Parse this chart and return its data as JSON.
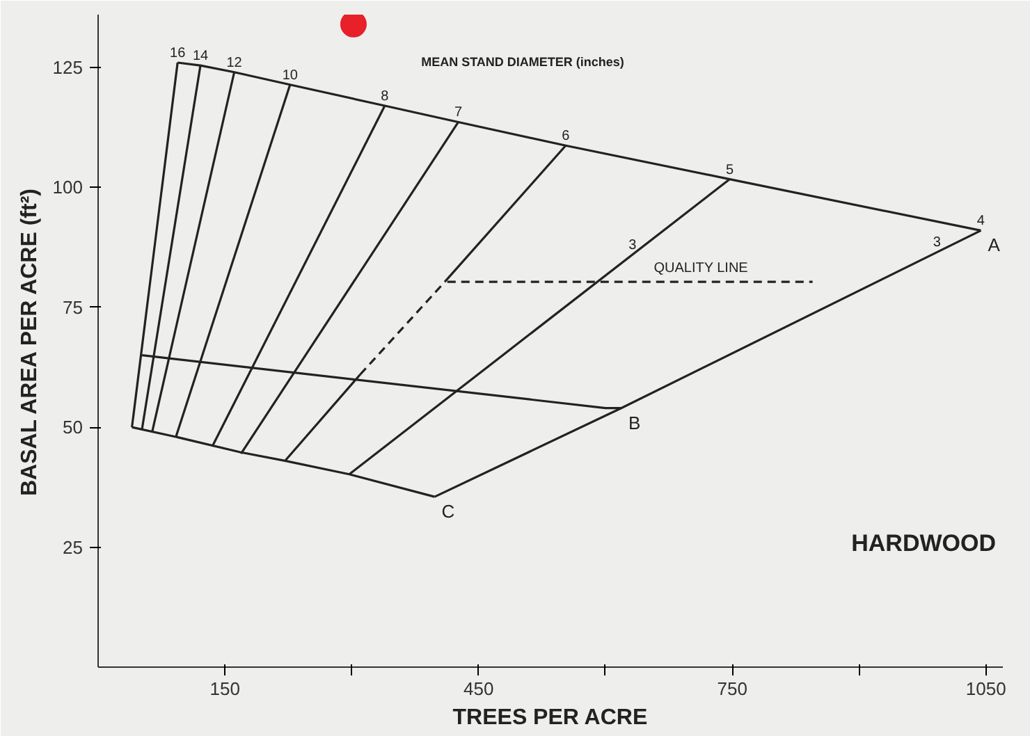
{
  "chart_data": {
    "type": "line",
    "xlabel": "TREES PER ACRE",
    "ylabel": "BASAL AREA PER ACRE (ft²)",
    "xlim": [
      0,
      1070
    ],
    "ylim": [
      0,
      136
    ],
    "xticks": [
      150,
      {
        "value": 300,
        "label": null
      },
      450,
      {
        "value": 600,
        "label": null
      },
      750,
      {
        "value": 900,
        "label": null
      },
      1050
    ],
    "yticks": [
      25,
      50,
      75,
      100,
      125
    ],
    "grid": false,
    "legend": false,
    "marker": "none",
    "line_style": "solid",
    "series": [
      {
        "name": "A",
        "color": "#222222",
        "x": [
          94,
          121,
          161,
          227,
          339,
          426,
          553,
          747,
          1044
        ],
        "values": [
          126,
          125.4,
          124,
          121.4,
          117,
          113.6,
          108.7,
          101.7,
          91
        ]
      },
      {
        "name": "B",
        "color": "#222222",
        "x": [
          52,
          600,
          619
        ],
        "values": [
          65,
          54,
          54
        ]
      },
      {
        "name": "C",
        "color": "#222222",
        "x": [
          40,
          92,
          168,
          221,
          297,
          398
        ],
        "values": [
          50,
          48,
          44.8,
          43,
          40.2,
          35.5
        ]
      },
      {
        "color": "#222222",
        "x": [
          398,
          619,
          1044
        ],
        "values": [
          35.5,
          54,
          91
        ]
      },
      {
        "color": "#222222",
        "x": [
          40,
          94
        ],
        "values": [
          50,
          126
        ]
      },
      {
        "color": "#222222",
        "x": [
          52,
          121
        ],
        "values": [
          49.7,
          125.4
        ]
      },
      {
        "color": "#222222",
        "x": [
          64,
          161
        ],
        "values": [
          49.1,
          124
        ]
      },
      {
        "color": "#222222",
        "x": [
          92,
          227
        ],
        "values": [
          48,
          121.4
        ]
      },
      {
        "color": "#222222",
        "x": [
          135,
          339
        ],
        "values": [
          46,
          117
        ]
      },
      {
        "color": "#222222",
        "x": [
          169,
          426
        ],
        "values": [
          44.5,
          113.6
        ]
      },
      {
        "color": "#222222",
        "x": [
          221,
          310
        ],
        "values": [
          43,
          61
        ]
      },
      {
        "color": "#222222",
        "x": [
          310,
          410
        ],
        "values": [
          61,
          80.3
        ],
        "line_style": "dashed"
      },
      {
        "color": "#222222",
        "x": [
          410,
          553
        ],
        "values": [
          80.3,
          108.7
        ]
      },
      {
        "color": "#222222",
        "x": [
          297,
          747
        ],
        "values": [
          40.2,
          101.7
        ]
      },
      {
        "color": "#222222",
        "x": [
          413,
          845
        ],
        "values": [
          80.3,
          80.3
        ],
        "line_style": "dashed"
      },
      {
        "type": "scatter",
        "marker": "circle",
        "color": "#e8202a",
        "x": [
          302
        ],
        "values": [
          134
        ]
      }
    ],
    "annotations": [
      {
        "text": "16",
        "x": 94,
        "y": 126
      },
      {
        "text": "14",
        "x": 121,
        "y": 125.4
      },
      {
        "text": "12",
        "x": 161,
        "y": 124
      },
      {
        "text": "10",
        "x": 227,
        "y": 121.4
      },
      {
        "text": "8",
        "x": 339,
        "y": 117
      },
      {
        "text": "7",
        "x": 426,
        "y": 113.6
      },
      {
        "text": "6",
        "x": 553,
        "y": 108.7
      },
      {
        "text": "5",
        "x": 747,
        "y": 101.7
      },
      {
        "text": "4",
        "x": 1044,
        "y": 91
      },
      {
        "text": "3",
        "x": 632,
        "y": 86
      },
      {
        "text": "3",
        "x": 992,
        "y": 86.5
      },
      {
        "text": "QUALITY LINE",
        "x": 713,
        "y": 80.3
      },
      "MEAN STAND DIAMETER (inches)",
      "HARDWOOD"
    ]
  }
}
